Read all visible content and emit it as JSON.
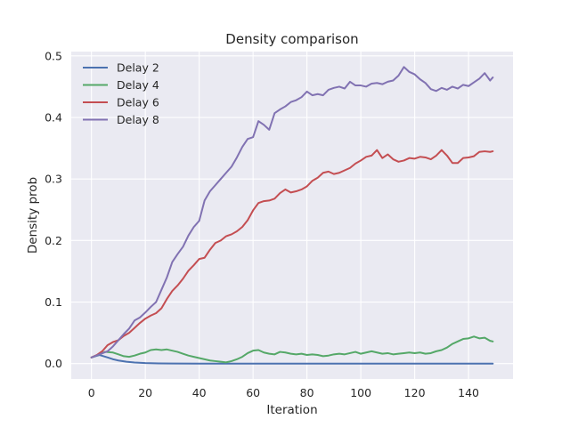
{
  "chart_data": {
    "type": "line",
    "title": "Density comparison",
    "xlabel": "Iteration",
    "ylabel": "Density prob",
    "xlim": [
      -7.5,
      156.5
    ],
    "ylim": [
      -0.025,
      0.507
    ],
    "xticks": [
      0,
      20,
      40,
      60,
      80,
      100,
      120,
      140
    ],
    "yticks": [
      0.0,
      0.1,
      0.2,
      0.3,
      0.4,
      0.5
    ],
    "grid": true,
    "legend_position": "top-left",
    "colors": {
      "plot_background": "#eaeaf2",
      "grid": "#ffffff"
    },
    "series": [
      {
        "name": "Delay 2",
        "color": "#4c72b0",
        "points": [
          [
            0,
            0.01
          ],
          [
            3,
            0.014
          ],
          [
            6,
            0.01
          ],
          [
            8,
            0.007
          ],
          [
            10,
            0.005
          ],
          [
            13,
            0.003
          ],
          [
            16,
            0.0018
          ],
          [
            20,
            0.0008
          ],
          [
            25,
            0.0003
          ],
          [
            30,
            0.0001
          ],
          [
            40,
            0.0
          ],
          [
            60,
            0.0
          ],
          [
            80,
            0.0
          ],
          [
            100,
            0.0
          ],
          [
            120,
            0.0
          ],
          [
            140,
            0.0
          ],
          [
            149,
            0.0
          ]
        ]
      },
      {
        "name": "Delay 4",
        "color": "#55a868",
        "points": [
          [
            0,
            0.01
          ],
          [
            3,
            0.015
          ],
          [
            5,
            0.019
          ],
          [
            8,
            0.018
          ],
          [
            10,
            0.015
          ],
          [
            12,
            0.012
          ],
          [
            14,
            0.011
          ],
          [
            16,
            0.013
          ],
          [
            18,
            0.016
          ],
          [
            20,
            0.018
          ],
          [
            22,
            0.022
          ],
          [
            24,
            0.023
          ],
          [
            26,
            0.022
          ],
          [
            28,
            0.023
          ],
          [
            30,
            0.021
          ],
          [
            32,
            0.019
          ],
          [
            34,
            0.016
          ],
          [
            36,
            0.013
          ],
          [
            38,
            0.011
          ],
          [
            40,
            0.009
          ],
          [
            42,
            0.007
          ],
          [
            44,
            0.005
          ],
          [
            46,
            0.004
          ],
          [
            48,
            0.003
          ],
          [
            50,
            0.002
          ],
          [
            52,
            0.004
          ],
          [
            54,
            0.007
          ],
          [
            56,
            0.011
          ],
          [
            58,
            0.017
          ],
          [
            60,
            0.021
          ],
          [
            62,
            0.022
          ],
          [
            64,
            0.018
          ],
          [
            66,
            0.016
          ],
          [
            68,
            0.015
          ],
          [
            70,
            0.019
          ],
          [
            72,
            0.018
          ],
          [
            74,
            0.016
          ],
          [
            76,
            0.015
          ],
          [
            78,
            0.016
          ],
          [
            80,
            0.014
          ],
          [
            82,
            0.015
          ],
          [
            84,
            0.014
          ],
          [
            86,
            0.012
          ],
          [
            88,
            0.013
          ],
          [
            90,
            0.015
          ],
          [
            92,
            0.016
          ],
          [
            94,
            0.015
          ],
          [
            96,
            0.017
          ],
          [
            98,
            0.019
          ],
          [
            100,
            0.016
          ],
          [
            102,
            0.018
          ],
          [
            104,
            0.02
          ],
          [
            106,
            0.018
          ],
          [
            108,
            0.016
          ],
          [
            110,
            0.017
          ],
          [
            112,
            0.015
          ],
          [
            114,
            0.016
          ],
          [
            116,
            0.017
          ],
          [
            118,
            0.018
          ],
          [
            120,
            0.017
          ],
          [
            122,
            0.018
          ],
          [
            124,
            0.016
          ],
          [
            126,
            0.017
          ],
          [
            128,
            0.02
          ],
          [
            130,
            0.022
          ],
          [
            132,
            0.026
          ],
          [
            134,
            0.032
          ],
          [
            136,
            0.036
          ],
          [
            138,
            0.04
          ],
          [
            140,
            0.041
          ],
          [
            142,
            0.044
          ],
          [
            144,
            0.041
          ],
          [
            146,
            0.042
          ],
          [
            148,
            0.037
          ],
          [
            149,
            0.036
          ]
        ]
      },
      {
        "name": "Delay 6",
        "color": "#c44e52",
        "points": [
          [
            0,
            0.01
          ],
          [
            2,
            0.014
          ],
          [
            4,
            0.02
          ],
          [
            6,
            0.03
          ],
          [
            8,
            0.035
          ],
          [
            10,
            0.038
          ],
          [
            12,
            0.045
          ],
          [
            14,
            0.05
          ],
          [
            16,
            0.058
          ],
          [
            18,
            0.066
          ],
          [
            20,
            0.073
          ],
          [
            22,
            0.078
          ],
          [
            24,
            0.082
          ],
          [
            26,
            0.09
          ],
          [
            28,
            0.105
          ],
          [
            30,
            0.118
          ],
          [
            32,
            0.127
          ],
          [
            34,
            0.138
          ],
          [
            36,
            0.151
          ],
          [
            38,
            0.16
          ],
          [
            40,
            0.17
          ],
          [
            42,
            0.172
          ],
          [
            44,
            0.185
          ],
          [
            46,
            0.196
          ],
          [
            48,
            0.2
          ],
          [
            50,
            0.207
          ],
          [
            52,
            0.21
          ],
          [
            54,
            0.215
          ],
          [
            56,
            0.222
          ],
          [
            58,
            0.233
          ],
          [
            60,
            0.249
          ],
          [
            62,
            0.261
          ],
          [
            64,
            0.264
          ],
          [
            66,
            0.265
          ],
          [
            68,
            0.268
          ],
          [
            70,
            0.277
          ],
          [
            72,
            0.283
          ],
          [
            74,
            0.278
          ],
          [
            76,
            0.28
          ],
          [
            78,
            0.283
          ],
          [
            80,
            0.288
          ],
          [
            82,
            0.297
          ],
          [
            84,
            0.302
          ],
          [
            86,
            0.31
          ],
          [
            88,
            0.312
          ],
          [
            90,
            0.308
          ],
          [
            92,
            0.31
          ],
          [
            94,
            0.314
          ],
          [
            96,
            0.318
          ],
          [
            98,
            0.325
          ],
          [
            100,
            0.33
          ],
          [
            102,
            0.336
          ],
          [
            104,
            0.338
          ],
          [
            106,
            0.347
          ],
          [
            108,
            0.334
          ],
          [
            110,
            0.34
          ],
          [
            112,
            0.332
          ],
          [
            114,
            0.328
          ],
          [
            116,
            0.33
          ],
          [
            118,
            0.334
          ],
          [
            120,
            0.333
          ],
          [
            122,
            0.336
          ],
          [
            124,
            0.335
          ],
          [
            126,
            0.332
          ],
          [
            128,
            0.338
          ],
          [
            130,
            0.347
          ],
          [
            132,
            0.338
          ],
          [
            134,
            0.326
          ],
          [
            136,
            0.326
          ],
          [
            138,
            0.334
          ],
          [
            140,
            0.335
          ],
          [
            142,
            0.337
          ],
          [
            144,
            0.344
          ],
          [
            146,
            0.345
          ],
          [
            148,
            0.344
          ],
          [
            149,
            0.345
          ]
        ]
      },
      {
        "name": "Delay 8",
        "color": "#8172b2",
        "points": [
          [
            0,
            0.01
          ],
          [
            3,
            0.015
          ],
          [
            6,
            0.02
          ],
          [
            8,
            0.028
          ],
          [
            10,
            0.038
          ],
          [
            12,
            0.048
          ],
          [
            14,
            0.057
          ],
          [
            16,
            0.07
          ],
          [
            18,
            0.075
          ],
          [
            20,
            0.083
          ],
          [
            22,
            0.092
          ],
          [
            24,
            0.1
          ],
          [
            26,
            0.12
          ],
          [
            28,
            0.14
          ],
          [
            30,
            0.165
          ],
          [
            32,
            0.178
          ],
          [
            34,
            0.19
          ],
          [
            36,
            0.208
          ],
          [
            38,
            0.222
          ],
          [
            40,
            0.232
          ],
          [
            42,
            0.265
          ],
          [
            44,
            0.28
          ],
          [
            46,
            0.29
          ],
          [
            48,
            0.3
          ],
          [
            50,
            0.31
          ],
          [
            52,
            0.32
          ],
          [
            54,
            0.335
          ],
          [
            56,
            0.352
          ],
          [
            58,
            0.365
          ],
          [
            60,
            0.368
          ],
          [
            62,
            0.394
          ],
          [
            64,
            0.388
          ],
          [
            66,
            0.38
          ],
          [
            68,
            0.407
          ],
          [
            70,
            0.413
          ],
          [
            72,
            0.418
          ],
          [
            74,
            0.425
          ],
          [
            76,
            0.428
          ],
          [
            78,
            0.433
          ],
          [
            80,
            0.442
          ],
          [
            82,
            0.436
          ],
          [
            84,
            0.438
          ],
          [
            86,
            0.436
          ],
          [
            88,
            0.445
          ],
          [
            90,
            0.448
          ],
          [
            92,
            0.45
          ],
          [
            94,
            0.447
          ],
          [
            96,
            0.458
          ],
          [
            98,
            0.452
          ],
          [
            100,
            0.452
          ],
          [
            102,
            0.45
          ],
          [
            104,
            0.455
          ],
          [
            106,
            0.456
          ],
          [
            108,
            0.454
          ],
          [
            110,
            0.458
          ],
          [
            112,
            0.46
          ],
          [
            114,
            0.468
          ],
          [
            116,
            0.482
          ],
          [
            118,
            0.474
          ],
          [
            120,
            0.47
          ],
          [
            122,
            0.462
          ],
          [
            124,
            0.456
          ],
          [
            126,
            0.446
          ],
          [
            128,
            0.443
          ],
          [
            130,
            0.448
          ],
          [
            132,
            0.445
          ],
          [
            134,
            0.45
          ],
          [
            136,
            0.447
          ],
          [
            138,
            0.453
          ],
          [
            140,
            0.451
          ],
          [
            142,
            0.457
          ],
          [
            144,
            0.463
          ],
          [
            146,
            0.472
          ],
          [
            148,
            0.46
          ],
          [
            149,
            0.465
          ]
        ]
      }
    ]
  }
}
